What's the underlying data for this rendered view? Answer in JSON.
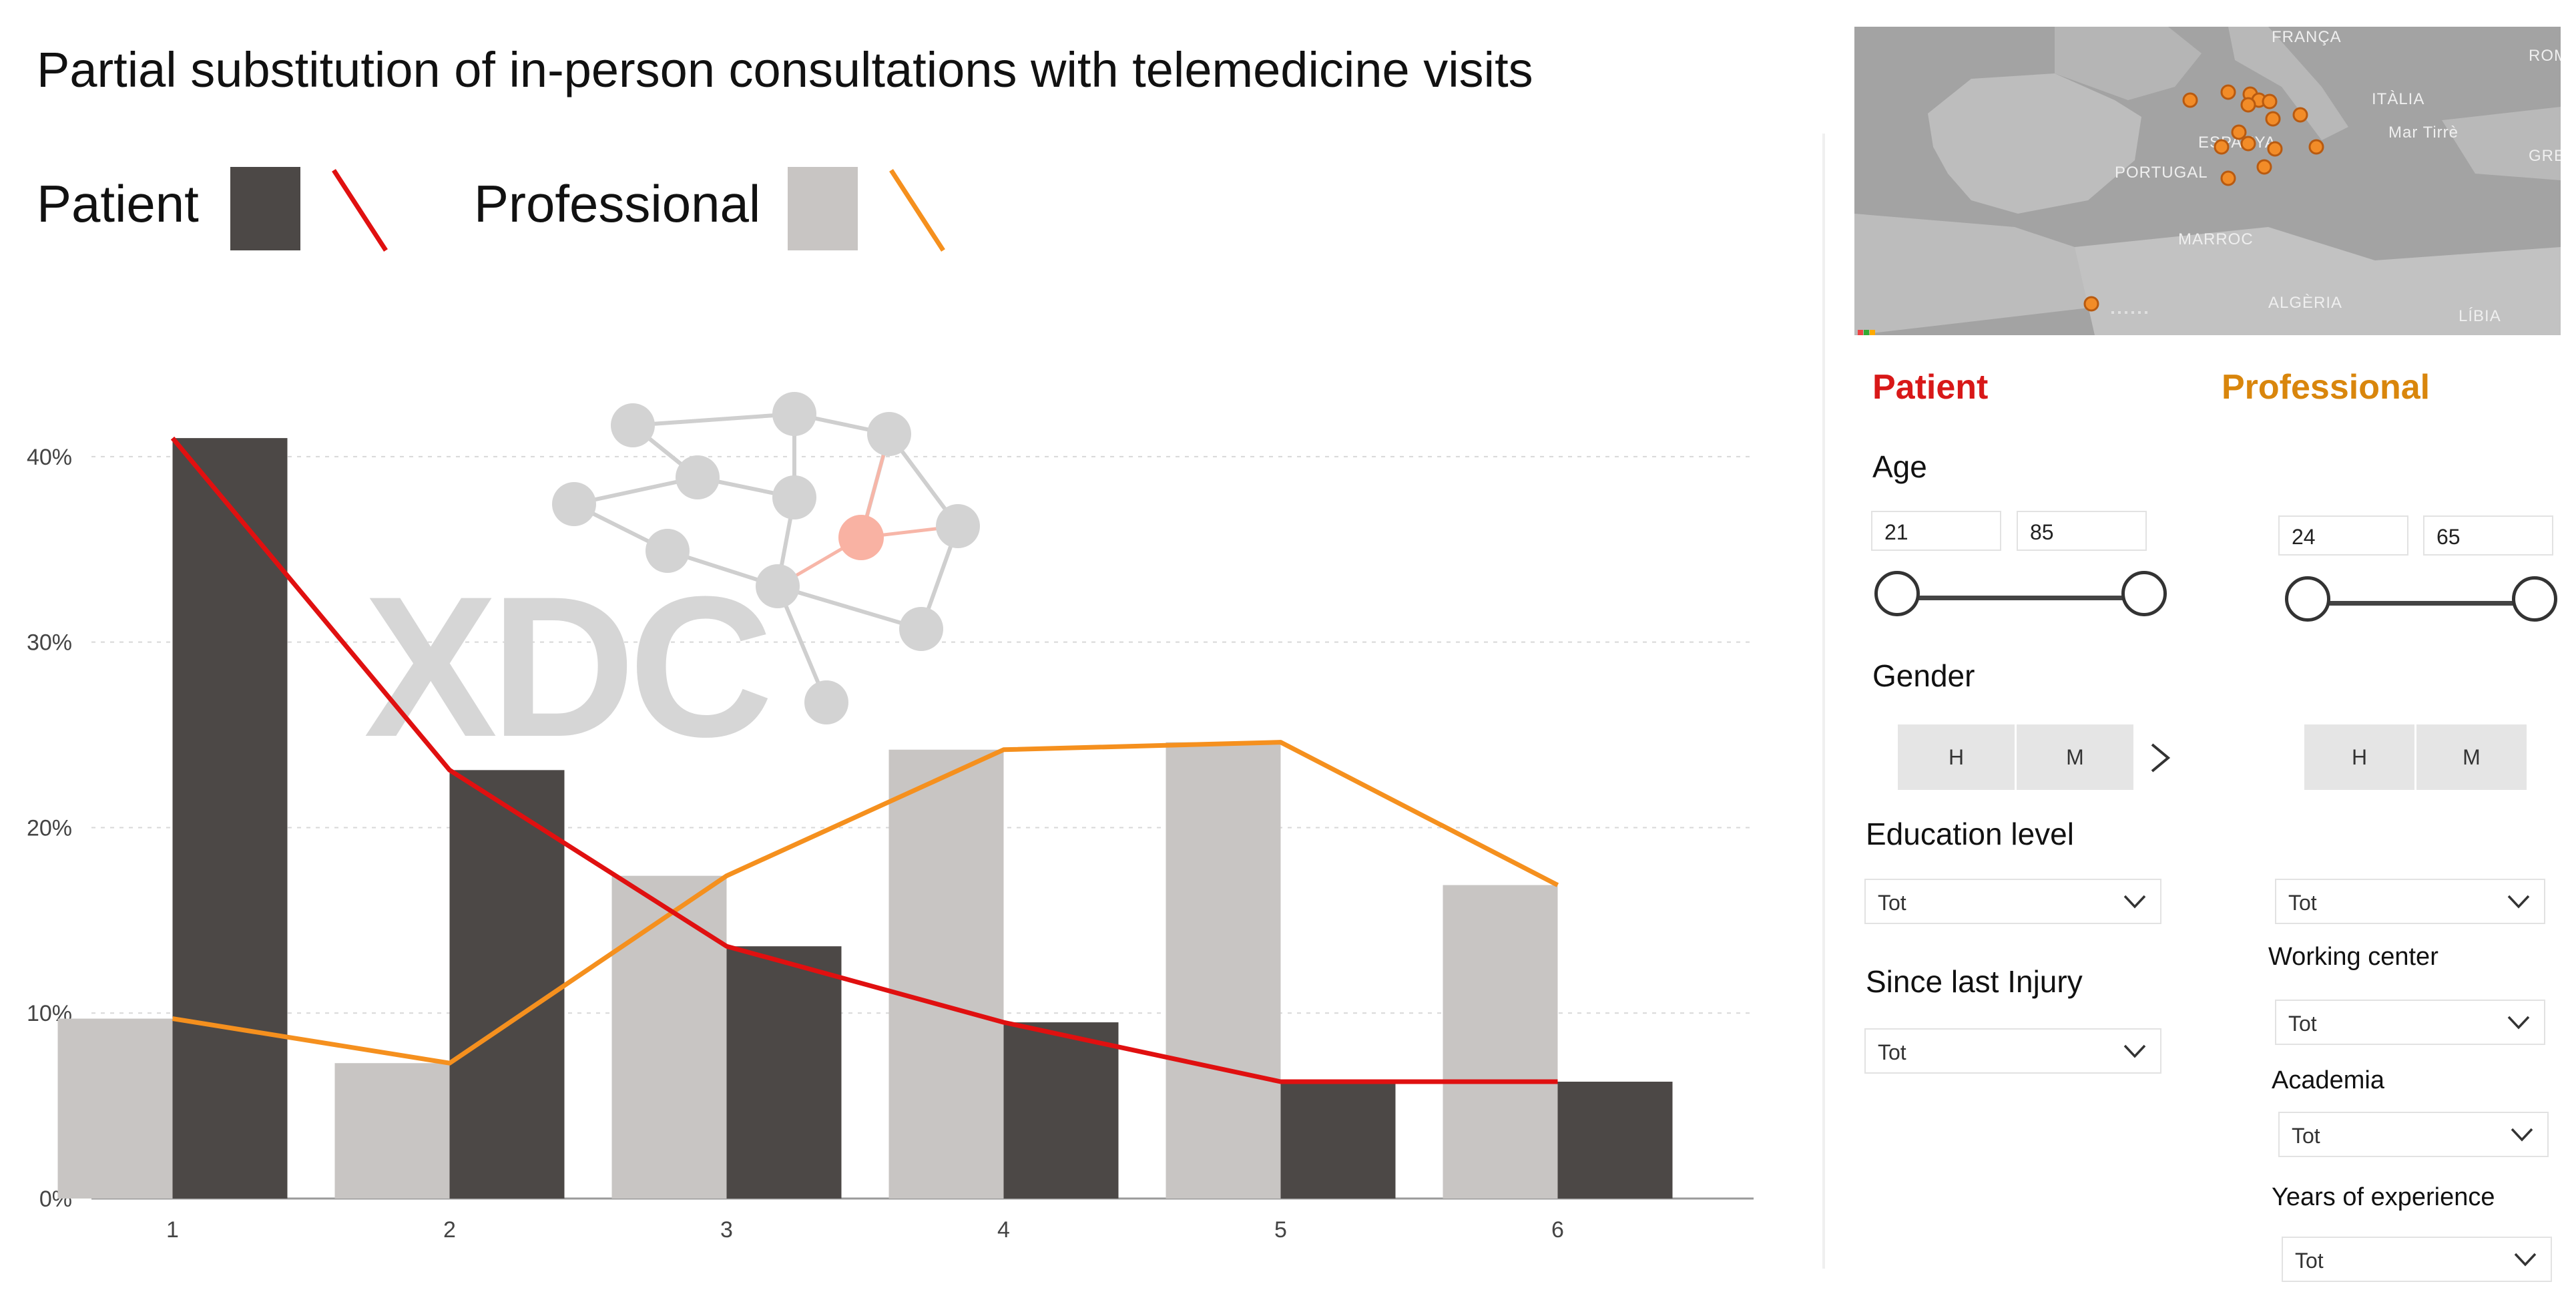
{
  "title": "Partial substitution of in-person consultations with telemedicine visits",
  "legend": {
    "patient_label": "Patient",
    "professional_label": "Professional"
  },
  "colors": {
    "patient_bar": "#4c4846",
    "professional_bar": "#c8c5c3",
    "patient_line": "#e01010",
    "professional_line": "#f5901e",
    "patient_title": "#d81818",
    "professional_title": "#d9860c"
  },
  "watermark": {
    "text": "XDC"
  },
  "map": {
    "labels": [
      "FRANÇA",
      "ITÀLIA",
      "ROM",
      "ESPANYA",
      "PORTUGAL",
      "Mar Tirrè",
      "GRECI",
      "MARROC",
      "ALGÈRIA",
      "LÍBIA"
    ]
  },
  "filters": {
    "patient": {
      "title": "Patient",
      "age_label": "Age",
      "age_min": "21",
      "age_max": "85",
      "gender_label": "Gender",
      "gender_options": [
        "H",
        "M"
      ],
      "education_label": "Education level",
      "education_value": "Tot",
      "injury_label": "Since last Injury",
      "injury_value": "Tot"
    },
    "professional": {
      "title": "Professional",
      "age_min": "24",
      "age_max": "65",
      "gender_options": [
        "H",
        "M"
      ],
      "education_value": "Tot",
      "working_center_label": "Working center",
      "working_center_value": "Tot",
      "academia_label": "Academia",
      "academia_value": "Tot",
      "experience_label": "Years of experience",
      "experience_value": "Tot"
    }
  },
  "chart_data": {
    "type": "bar",
    "title": "Partial substitution of in-person consultations with telemedicine visits",
    "categories": [
      "1",
      "2",
      "3",
      "4",
      "5",
      "6"
    ],
    "series": [
      {
        "name": "Professional",
        "kind": "bar",
        "values": [
          9.7,
          7.3,
          17.4,
          24.2,
          24.6,
          16.9
        ]
      },
      {
        "name": "Patient",
        "kind": "bar",
        "values": [
          41.0,
          23.1,
          13.6,
          9.5,
          6.3,
          6.3
        ]
      },
      {
        "name": "Patient",
        "kind": "line",
        "values": [
          41.0,
          23.1,
          13.6,
          9.5,
          6.3,
          6.3
        ]
      },
      {
        "name": "Professional",
        "kind": "line",
        "values": [
          9.7,
          7.3,
          17.4,
          24.2,
          24.6,
          16.9
        ]
      }
    ],
    "yticks": [
      "0%",
      "10%",
      "20%",
      "30%",
      "40%"
    ],
    "ylim": [
      0,
      45
    ],
    "xlabel": "",
    "ylabel": "",
    "grid": true
  }
}
